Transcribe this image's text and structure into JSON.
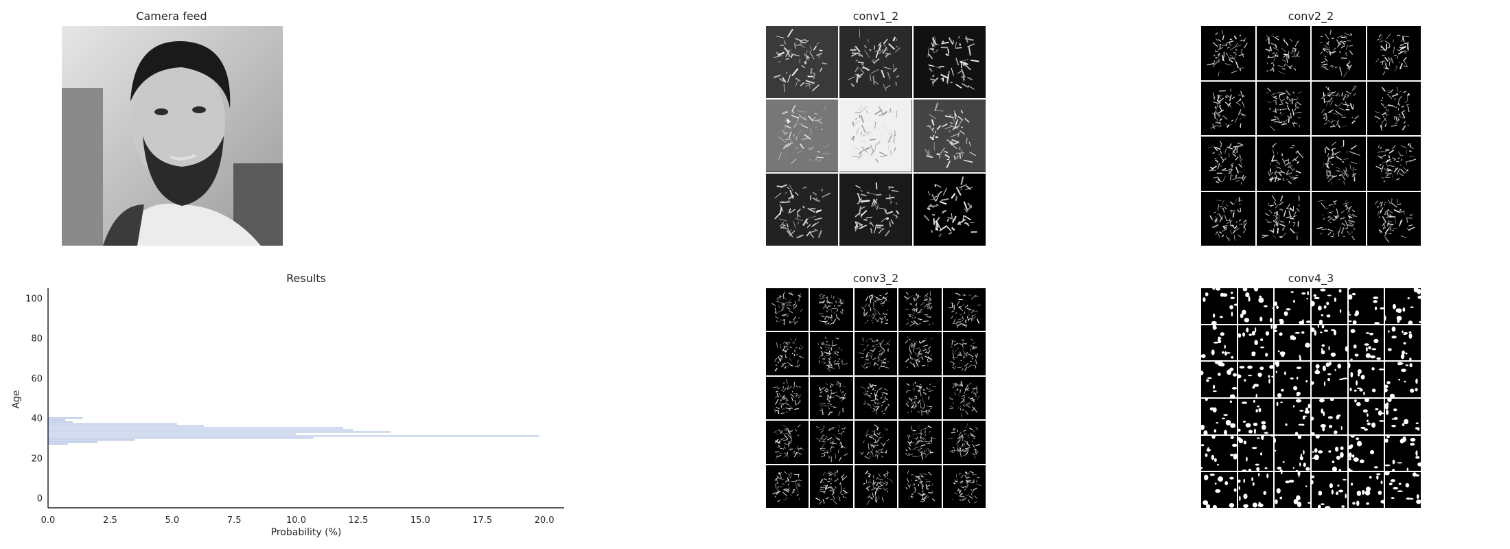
{
  "panels": {
    "camera": {
      "title": "Camera feed",
      "image_description_icon": "face-photo"
    },
    "conv1_2": {
      "title": "conv1_2",
      "rows": 3,
      "cols": 3,
      "tile_bg": [
        "#3a3a3a",
        "#2a2a2a",
        "#111111",
        "#777777",
        "#f0f0f0",
        "#444444",
        "#222222",
        "#1a1a1a",
        "#000000"
      ]
    },
    "conv2_2": {
      "title": "conv2_2",
      "rows": 4,
      "cols": 4
    },
    "conv3_2": {
      "title": "conv3_2",
      "rows": 5,
      "cols": 5
    },
    "conv4_3": {
      "title": "conv4_3",
      "rows": 6,
      "cols": 6
    }
  },
  "chart_data": {
    "type": "bar",
    "orientation": "horizontal",
    "title": "Results",
    "xlabel": "Probability (%)",
    "ylabel": "Age",
    "xlim": [
      0,
      20.8
    ],
    "ylim": [
      -5,
      105
    ],
    "xticks": [
      "0.0",
      "2.5",
      "5.0",
      "7.5",
      "10.0",
      "12.5",
      "15.0",
      "17.5",
      "20.0"
    ],
    "xtick_values": [
      0,
      2.5,
      5,
      7.5,
      10,
      12.5,
      15,
      17.5,
      20
    ],
    "yticks": [
      "0",
      "20",
      "40",
      "60",
      "80",
      "100"
    ],
    "ytick_values": [
      0,
      20,
      40,
      60,
      80,
      100
    ],
    "bar_color": "#b8c7e6",
    "ages": [
      27,
      28,
      29,
      30,
      31,
      32,
      33,
      34,
      35,
      36,
      37,
      38,
      39,
      40
    ],
    "values": [
      0.8,
      2.0,
      3.5,
      10.7,
      19.8,
      10.0,
      13.8,
      12.3,
      11.9,
      6.3,
      5.2,
      1.0,
      0.7,
      1.4
    ],
    "grid": false
  }
}
